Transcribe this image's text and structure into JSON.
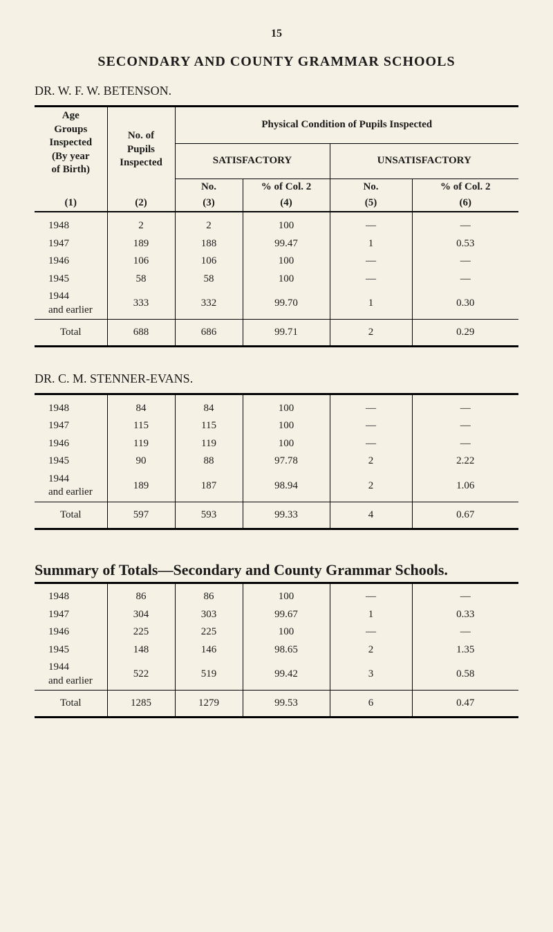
{
  "page_number": "15",
  "main_title": "SECONDARY AND COUNTY GRAMMAR SCHOOLS",
  "table1": {
    "doctor": "DR. W. F. W. BETENSON.",
    "headers": {
      "col1_l1": "Age",
      "col1_l2": "Groups",
      "col1_l3": "Inspected",
      "col1_l4": "(By year",
      "col1_l5": "of Birth)",
      "col2_l1": "No. of",
      "col2_l2": "Pupils",
      "col2_l3": "Inspected",
      "physical_header": "Physical Condition of Pupils Inspected",
      "satisfactory": "SATISFACTORY",
      "unsatisfactory": "UNSATISFACTORY",
      "no": "No.",
      "pct_col2": "% of Col. 2",
      "idx1": "(1)",
      "idx2": "(2)",
      "idx3": "(3)",
      "idx4": "(4)",
      "idx5": "(5)",
      "idx6": "(6)"
    },
    "rows": [
      {
        "age": "1948",
        "pupils": "2",
        "satno": "2",
        "satpct": "100",
        "unsatno": "—",
        "unsatpct": "—"
      },
      {
        "age": "1947",
        "pupils": "189",
        "satno": "188",
        "satpct": "99.47",
        "unsatno": "1",
        "unsatpct": "0.53"
      },
      {
        "age": "1946",
        "pupils": "106",
        "satno": "106",
        "satpct": "100",
        "unsatno": "—",
        "unsatpct": "—"
      },
      {
        "age": "1945",
        "pupils": "58",
        "satno": "58",
        "satpct": "100",
        "unsatno": "—",
        "unsatpct": "—"
      },
      {
        "age": "1944\nand earlier",
        "pupils": "333",
        "satno": "332",
        "satpct": "99.70",
        "unsatno": "1",
        "unsatpct": "0.30"
      }
    ],
    "total": {
      "label": "Total",
      "pupils": "688",
      "satno": "686",
      "satpct": "99.71",
      "unsatno": "2",
      "unsatpct": "0.29"
    }
  },
  "table2": {
    "doctor": "DR. C. M. STENNER-EVANS.",
    "rows": [
      {
        "age": "1948",
        "pupils": "84",
        "satno": "84",
        "satpct": "100",
        "unsatno": "—",
        "unsatpct": "—"
      },
      {
        "age": "1947",
        "pupils": "115",
        "satno": "115",
        "satpct": "100",
        "unsatno": "—",
        "unsatpct": "—"
      },
      {
        "age": "1946",
        "pupils": "119",
        "satno": "119",
        "satpct": "100",
        "unsatno": "—",
        "unsatpct": "—"
      },
      {
        "age": "1945",
        "pupils": "90",
        "satno": "88",
        "satpct": "97.78",
        "unsatno": "2",
        "unsatpct": "2.22"
      },
      {
        "age": "1944\nand earlier",
        "pupils": "189",
        "satno": "187",
        "satpct": "98.94",
        "unsatno": "2",
        "unsatpct": "1.06"
      }
    ],
    "total": {
      "label": "Total",
      "pupils": "597",
      "satno": "593",
      "satpct": "99.33",
      "unsatno": "4",
      "unsatpct": "0.67"
    }
  },
  "summary_title": "Summary of Totals—Secondary and County Grammar Schools.",
  "table3": {
    "rows": [
      {
        "age": "1948",
        "pupils": "86",
        "satno": "86",
        "satpct": "100",
        "unsatno": "—",
        "unsatpct": "—"
      },
      {
        "age": "1947",
        "pupils": "304",
        "satno": "303",
        "satpct": "99.67",
        "unsatno": "1",
        "unsatpct": "0.33"
      },
      {
        "age": "1946",
        "pupils": "225",
        "satno": "225",
        "satpct": "100",
        "unsatno": "—",
        "unsatpct": "—"
      },
      {
        "age": "1945",
        "pupils": "148",
        "satno": "146",
        "satpct": "98.65",
        "unsatno": "2",
        "unsatpct": "1.35"
      },
      {
        "age": "1944\nand earlier",
        "pupils": "522",
        "satno": "519",
        "satpct": "99.42",
        "unsatno": "3",
        "unsatpct": "0.58"
      }
    ],
    "total": {
      "label": "Total",
      "pupils": "1285",
      "satno": "1279",
      "satpct": "99.53",
      "unsatno": "6",
      "unsatpct": "0.47"
    }
  }
}
